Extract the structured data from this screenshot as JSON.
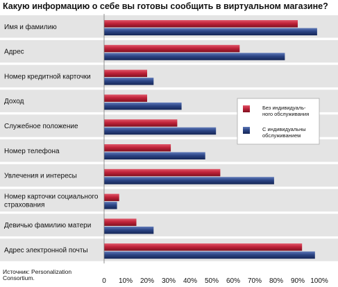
{
  "chart_data": {
    "type": "bar",
    "orientation": "horizontal",
    "title": "Какую информацию о себе вы готовы сообщить в виртуальном магазине?",
    "categories": [
      "Имя и фамилию",
      "Адрес",
      "Номер кредитной карточки",
      "Доход",
      "Служебное положение",
      "Номер телефона",
      "Увлечения и интересы",
      "Номер карточки социального страхования",
      "Девичью фамилию матери",
      "Адрес электронной почты"
    ],
    "series": [
      {
        "name": "Без индивидуального обслуживания",
        "values": [
          90,
          63,
          20,
          20,
          34,
          31,
          54,
          7,
          15,
          92
        ],
        "color": "#c0233a"
      },
      {
        "name": "С индивидуальным обслуживанием",
        "values": [
          99,
          84,
          23,
          36,
          52,
          47,
          79,
          6,
          23,
          98
        ],
        "color": "#2c4585"
      }
    ],
    "xlim": [
      0,
      100
    ],
    "xticks": [
      "0",
      "10%",
      "20%",
      "30%",
      "40%",
      "50%",
      "60%",
      "70%",
      "80%",
      "90%",
      "100%"
    ],
    "legend_position": "right",
    "legend": {
      "series1_lines": [
        "Без индивидуаль-",
        "ного обслуживания"
      ],
      "series2_lines": [
        "С индивидуальны",
        "обслуживанием"
      ]
    },
    "category_lines": [
      [
        "Имя и фамилию"
      ],
      [
        "Адрес"
      ],
      [
        "Номер кредитной карточки"
      ],
      [
        "Доход"
      ],
      [
        "Служебное положение"
      ],
      [
        "Номер телефона"
      ],
      [
        "Увлечения и интересы"
      ],
      [
        "Номер карточки социального",
        "страхования"
      ],
      [
        "Девичью фамилию матери"
      ],
      [
        "Адрес электронной почты"
      ]
    ],
    "source_lines": [
      "Источник: Personalization",
      "Consortium."
    ],
    "panel_color": "#e4e4e4"
  }
}
